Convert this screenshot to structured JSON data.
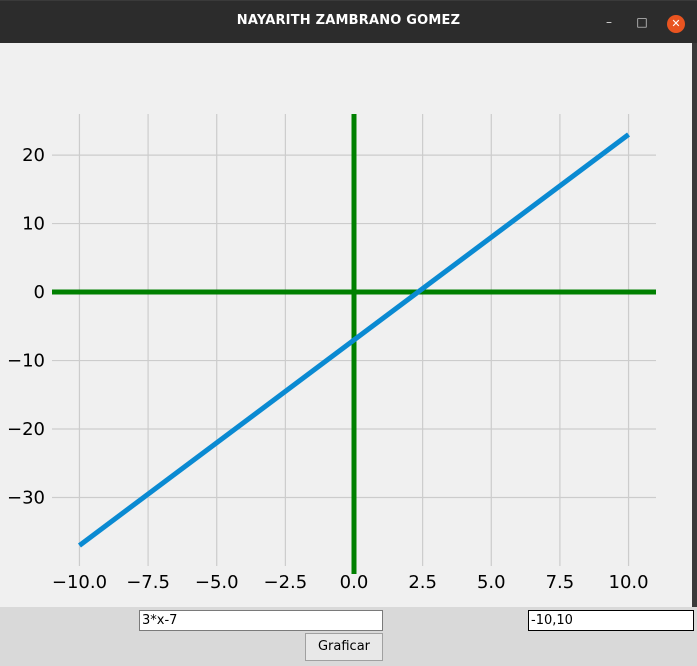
{
  "window": {
    "title": "NAYARITH ZAMBRANO GOMEZ",
    "minimize_glyph": "–",
    "maximize_glyph": "□",
    "close_glyph": "✕"
  },
  "controls": {
    "function_value": "3*x-7",
    "range_value": "-10,10",
    "graph_button_label": "Graficar"
  },
  "chart_data": {
    "type": "line",
    "x_ticks": [
      -10.0,
      -7.5,
      -5.0,
      -2.5,
      0.0,
      2.5,
      5.0,
      7.5,
      10.0
    ],
    "x_tick_labels": [
      "−10.0",
      "−7.5",
      "−5.0",
      "−2.5",
      "0.0",
      "2.5",
      "5.0",
      "7.5",
      "10.0"
    ],
    "y_ticks": [
      -30,
      -20,
      -10,
      0,
      10,
      20
    ],
    "y_tick_labels": [
      "−30",
      "−20",
      "−10",
      "0",
      "10",
      "20"
    ],
    "xlim": [
      -11.0,
      11.0
    ],
    "ylim": [
      -40.0,
      26.0
    ],
    "grid": true,
    "series": [
      {
        "x": [
          -10,
          10
        ],
        "y": [
          -37,
          23
        ],
        "color": "#0a8ad2"
      }
    ],
    "axis_lines_color": "#008000",
    "grid_color": "#cccccc"
  }
}
